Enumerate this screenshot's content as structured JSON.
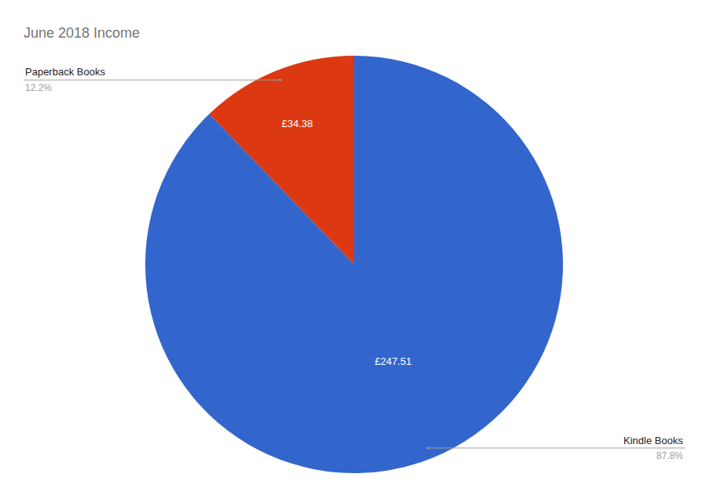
{
  "chart_data": {
    "type": "pie",
    "title": "June 2018 Income",
    "categories": [
      "Kindle Books",
      "Paperback Books"
    ],
    "values": [
      247.51,
      34.38
    ],
    "value_labels": [
      "£247.51",
      "£34.38"
    ],
    "percent_labels": [
      "87.8%",
      "12.2%"
    ],
    "colors": [
      "#3366cc",
      "#dc3912"
    ],
    "data_labels": true
  }
}
